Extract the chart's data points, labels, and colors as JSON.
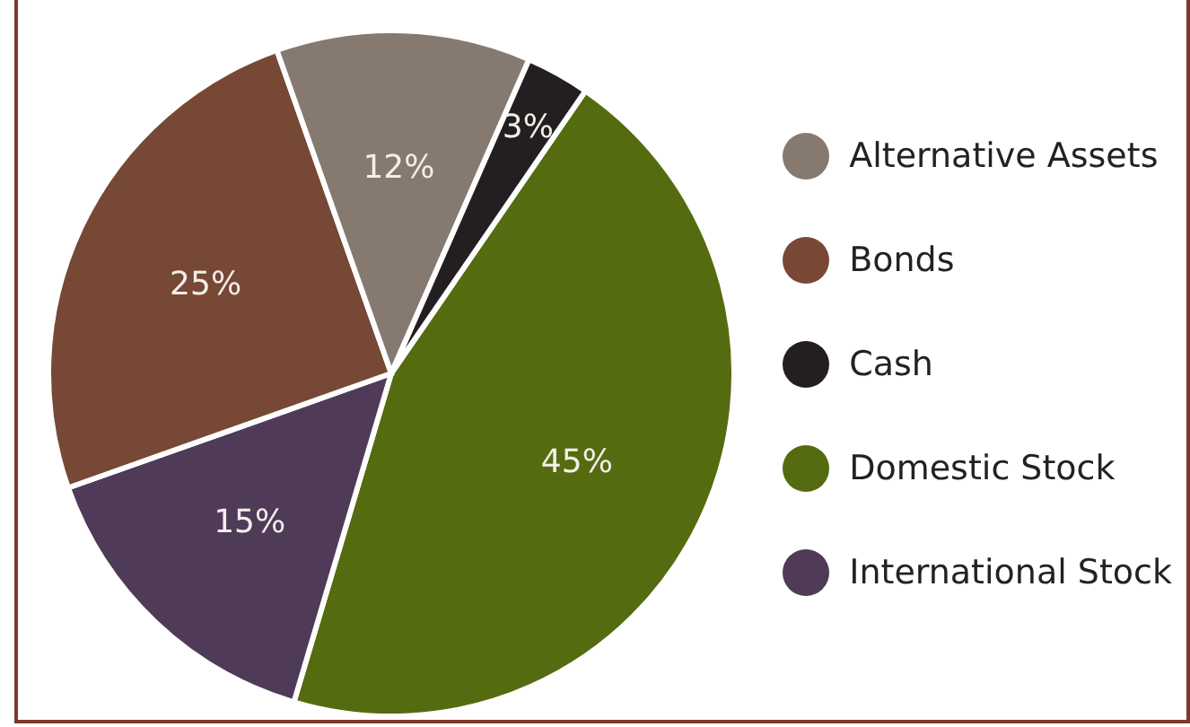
{
  "chart_data": {
    "type": "pie",
    "categories": [
      "Domestic Stock",
      "International Stock",
      "Bonds",
      "Alternative Assets",
      "Cash"
    ],
    "values": [
      45,
      15,
      25,
      12,
      3
    ],
    "colors": [
      "#556b10",
      "#4f3b58",
      "#774835",
      "#857970",
      "#231f20"
    ],
    "value_labels": [
      "45%",
      "15%",
      "25%",
      "12%",
      "3%"
    ],
    "legend": "right"
  }
}
